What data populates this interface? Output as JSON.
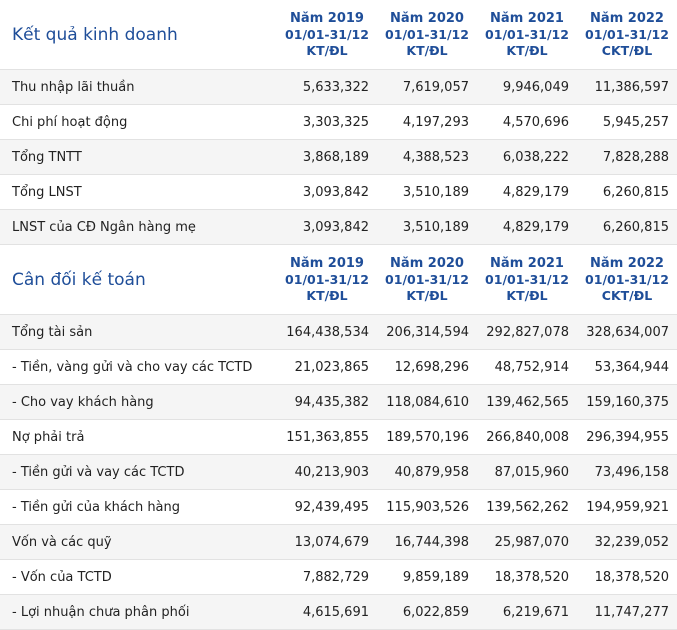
{
  "income": {
    "title": "Kết quả kinh doanh",
    "columns": [
      {
        "year": "Năm 2019",
        "period": "01/01-31/12",
        "type": "KT/ĐL"
      },
      {
        "year": "Năm 2020",
        "period": "01/01-31/12",
        "type": "KT/ĐL"
      },
      {
        "year": "Năm 2021",
        "period": "01/01-31/12",
        "type": "KT/ĐL"
      },
      {
        "year": "Năm 2022",
        "period": "01/01-31/12",
        "type": "CKT/ĐL"
      }
    ],
    "rows": [
      {
        "label": "Thu nhập lãi thuần",
        "values": [
          "5,633,322",
          "7,619,057",
          "9,946,049",
          "11,386,597"
        ]
      },
      {
        "label": "Chi phí hoạt động",
        "values": [
          "3,303,325",
          "4,197,293",
          "4,570,696",
          "5,945,257"
        ]
      },
      {
        "label": "Tổng TNTT",
        "values": [
          "3,868,189",
          "4,388,523",
          "6,038,222",
          "7,828,288"
        ]
      },
      {
        "label": "Tổng LNST",
        "values": [
          "3,093,842",
          "3,510,189",
          "4,829,179",
          "6,260,815"
        ]
      },
      {
        "label": "LNST của CĐ Ngân hàng mẹ",
        "values": [
          "3,093,842",
          "3,510,189",
          "4,829,179",
          "6,260,815"
        ]
      }
    ]
  },
  "balance": {
    "title": "Cân đối kế toán",
    "columns": [
      {
        "year": "Năm 2019",
        "period": "01/01-31/12",
        "type": "KT/ĐL"
      },
      {
        "year": "Năm 2020",
        "period": "01/01-31/12",
        "type": "KT/ĐL"
      },
      {
        "year": "Năm 2021",
        "period": "01/01-31/12",
        "type": "KT/ĐL"
      },
      {
        "year": "Năm 2022",
        "period": "01/01-31/12",
        "type": "CKT/ĐL"
      }
    ],
    "rows": [
      {
        "label": "Tổng tài sản",
        "values": [
          "164,438,534",
          "206,314,594",
          "292,827,078",
          "328,634,007"
        ]
      },
      {
        "label": "- Tiền, vàng gửi và cho vay các TCTD",
        "values": [
          "21,023,865",
          "12,698,296",
          "48,752,914",
          "53,364,944"
        ]
      },
      {
        "label": "- Cho vay khách hàng",
        "values": [
          "94,435,382",
          "118,084,610",
          "139,462,565",
          "159,160,375"
        ]
      },
      {
        "label": "Nợ phải trả",
        "values": [
          "151,363,855",
          "189,570,196",
          "266,840,008",
          "296,394,955"
        ]
      },
      {
        "label": "- Tiền gửi và vay các TCTD",
        "values": [
          "40,213,903",
          "40,879,958",
          "87,015,960",
          "73,496,158"
        ]
      },
      {
        "label": "- Tiền gửi của khách hàng",
        "values": [
          "92,439,495",
          "115,903,526",
          "139,562,262",
          "194,959,921"
        ]
      },
      {
        "label": "Vốn và các quỹ",
        "values": [
          "13,074,679",
          "16,744,398",
          "25,987,070",
          "32,239,052"
        ]
      },
      {
        "label": "- Vốn của TCTD",
        "values": [
          "7,882,729",
          "9,859,189",
          "18,378,520",
          "18,378,520"
        ]
      },
      {
        "label": "- Lợi nhuận chưa phân phối",
        "values": [
          "4,615,691",
          "6,022,859",
          "6,219,671",
          "11,747,277"
        ]
      }
    ]
  }
}
